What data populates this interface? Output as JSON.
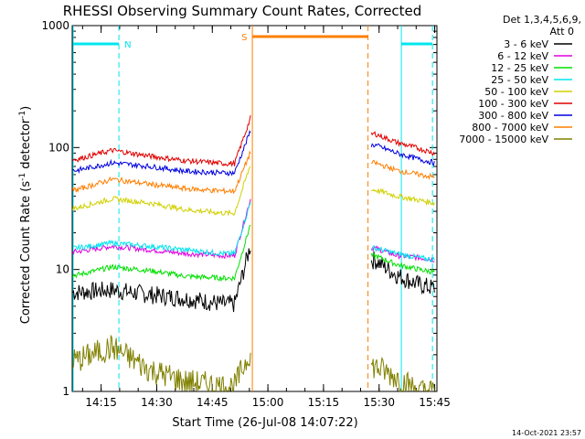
{
  "chart_data": {
    "type": "line",
    "title": "RHESSI Observing Summary Count Rates, Corrected",
    "xlabel": "Start Time (26-Jul-08 14:07:22)",
    "ylabel_main": "Corrected Count Rate (s",
    "ylabel_sup1": "-1",
    "ylabel_mid": " detector",
    "ylabel_sup2": "-1",
    "ylabel_end": ")",
    "footer": "14-Oct-2021 23:57",
    "legend_header": [
      "Det 1,3,4,5,6,9,",
      "Att 0"
    ],
    "legend_position": "right",
    "yscale": "log",
    "ylim": [
      1,
      1000
    ],
    "xlim_minutes": [
      14.12,
      15.76
    ],
    "x_ticks": [
      "14:15",
      "14:30",
      "14:45",
      "15:00",
      "15:15",
      "15:30",
      "15:45"
    ],
    "y_ticks": [
      "1",
      "10",
      "100",
      "1000"
    ],
    "markers": [
      {
        "label": "N",
        "start": 14.11,
        "end": 14.33,
        "color": "#00e5ee"
      },
      {
        "label": "S",
        "start": 14.93,
        "end": 15.45,
        "color": "#ff7f00"
      },
      {
        "label": "",
        "start": 15.6,
        "end": 15.74,
        "color": "#00e5ee"
      }
    ],
    "gaps": [
      {
        "start": 14.94,
        "end": 15.46
      }
    ],
    "series": [
      {
        "name": "3 - 6 keV",
        "color": "#000000",
        "values": [
          6.5,
          6.8,
          6.2,
          5.8,
          5.2,
          12,
          9,
          7.5,
          7.0
        ]
      },
      {
        "name": "6 - 12 keV",
        "color": "#e000e0",
        "values": [
          14,
          15.5,
          14.5,
          13.5,
          13,
          15,
          13,
          12.5,
          12
        ]
      },
      {
        "name": "12 - 25 keV",
        "color": "#00e000",
        "values": [
          9,
          10.5,
          9.8,
          8.8,
          8.5,
          13,
          11,
          10,
          9.5
        ]
      },
      {
        "name": "25 - 50 keV",
        "color": "#00e5ee",
        "values": [
          15,
          16.5,
          15.5,
          14.5,
          13.5,
          15,
          13.5,
          12.5,
          12
        ]
      },
      {
        "name": "50 - 100 keV",
        "color": "#d0d000",
        "values": [
          32,
          38,
          35,
          31,
          29,
          45,
          40,
          37,
          35
        ]
      },
      {
        "name": "100 - 300 keV",
        "color": "#e00000",
        "values": [
          80,
          95,
          85,
          78,
          74,
          130,
          110,
          98,
          90
        ]
      },
      {
        "name": "300 - 800 keV",
        "color": "#0000e0",
        "values": [
          65,
          75,
          70,
          64,
          62,
          105,
          90,
          80,
          75
        ]
      },
      {
        "name": "800 - 7000 keV",
        "color": "#ff7f00",
        "values": [
          45,
          55,
          50,
          46,
          44,
          75,
          65,
          60,
          57
        ]
      },
      {
        "name": "7000 - 15000 keV",
        "color": "#808000",
        "values": [
          1.8,
          2.3,
          1.5,
          1.2,
          1.1,
          1.6,
          1.3,
          1.0,
          1.0
        ]
      }
    ],
    "x_minutes_of_values": [
      14.14,
      14.3,
      14.47,
      14.63,
      14.8,
      15.48,
      15.58,
      15.68,
      15.75
    ]
  }
}
